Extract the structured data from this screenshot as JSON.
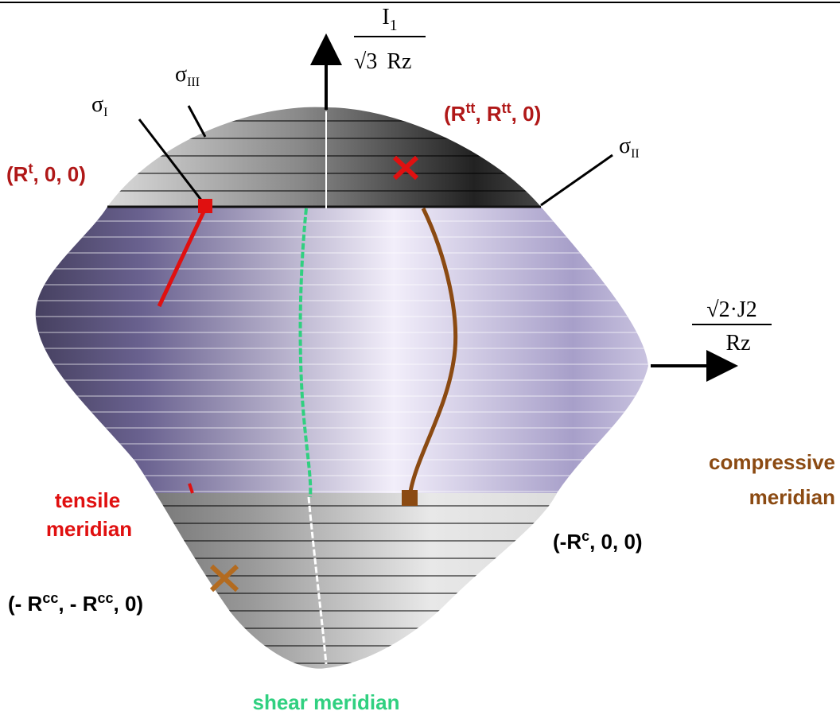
{
  "axes": {
    "vertical": {
      "numerator": [
        "I",
        "1"
      ],
      "denominator": [
        "√3",
        "Rz"
      ]
    },
    "horizontal": {
      "numerator": "√2·J2",
      "denominator": "Rz"
    }
  },
  "stresses": {
    "sigma_1": [
      "σ",
      "I"
    ],
    "sigma_2": [
      "σ",
      "II"
    ],
    "sigma_3": [
      "σ",
      "III"
    ]
  },
  "points": {
    "tensile": [
      "(R",
      "t",
      ", 0, 0)"
    ],
    "biaxial_tensile": [
      "(R",
      "tt",
      ", R",
      "tt",
      ", 0)"
    ],
    "compressive": [
      "(-R",
      "c",
      ", 0, 0)"
    ],
    "biaxial_compressive": [
      "(- R",
      "cc",
      ", - R",
      "cc",
      ", 0)"
    ]
  },
  "meridians": {
    "tensile": [
      "tensile",
      "meridian"
    ],
    "compressive": [
      "compressive",
      "meridian"
    ],
    "shear": "shear meridian"
  }
}
